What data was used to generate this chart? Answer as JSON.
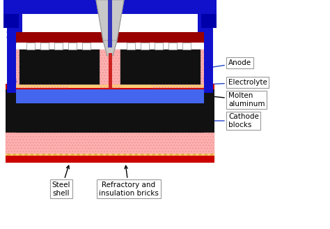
{
  "bg_color": "#ffffff",
  "colors": {
    "blue": "#1111cc",
    "dark_blue": "#0000aa",
    "red": "#cc0000",
    "dark_red": "#990000",
    "black": "#111111",
    "gray_hopper": "#c8c8c8",
    "gray_hopper_dark": "#aaaaaa",
    "pink": "#ffb0b0",
    "pink_hatch": "#ffaaaa",
    "orange": "#ffcc77",
    "blue_molten": "#4466ee",
    "blue_rod": "#3333bb",
    "red_rod": "#cc2222",
    "white": "#ffffff",
    "dark_gray": "#444444"
  },
  "labels": {
    "anode": "Anode",
    "electrolyte": "Electrolyte",
    "molten_al": "Molten\naluminum",
    "cathode": "Cathode\nblocks",
    "steel_shell": "Steel\nshell",
    "refractory": "Refractory and\ninsulation bricks"
  }
}
